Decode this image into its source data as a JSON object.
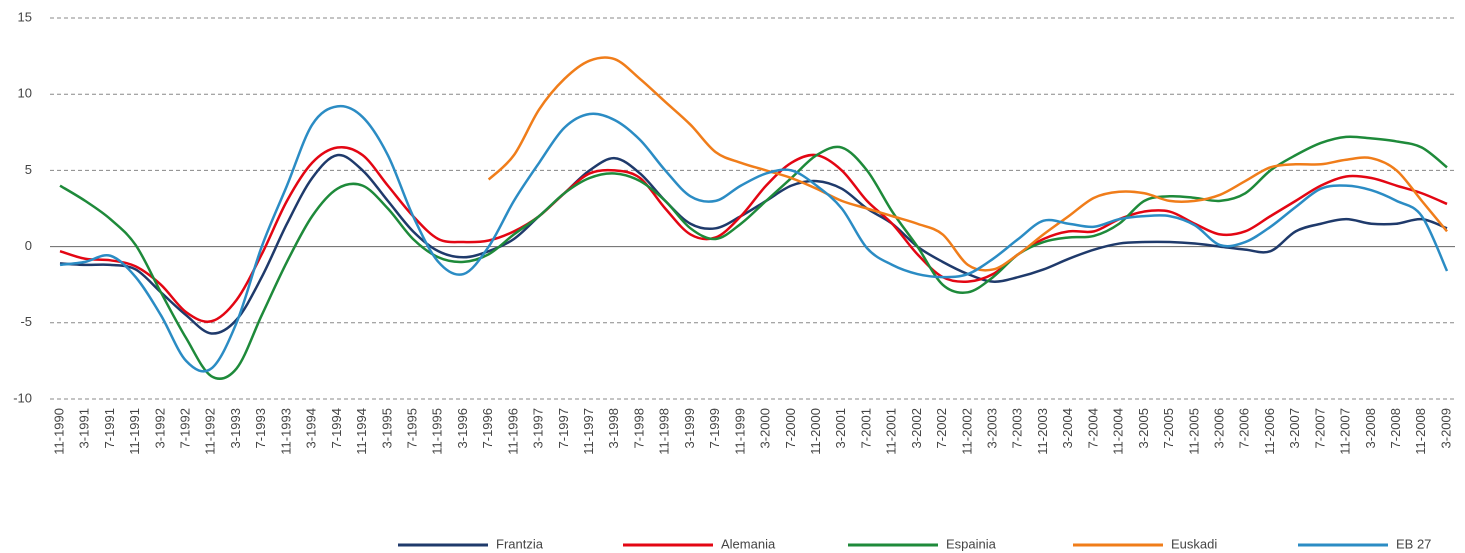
{
  "chart_data": {
    "type": "line",
    "categories": [
      "11-1990",
      "3-1991",
      "7-1991",
      "11-1991",
      "3-1992",
      "7-1992",
      "11-1992",
      "3-1993",
      "7-1993",
      "11-1993",
      "3-1994",
      "7-1994",
      "11-1994",
      "3-1995",
      "7-1995",
      "11-1995",
      "3-1996",
      "7-1996",
      "11-1996",
      "3-1997",
      "7-1997",
      "11-1997",
      "3-1998",
      "7-1998",
      "11-1998",
      "3-1999",
      "7-1999",
      "11-1999",
      "3-2000",
      "7-2000",
      "11-2000",
      "3-2001",
      "7-2001",
      "11-2001",
      "3-2002",
      "7-2002",
      "11-2002",
      "3-2003",
      "7-2003",
      "11-2003",
      "3-2004",
      "7-2004",
      "11-2004",
      "3-2005",
      "7-2005",
      "11-2005",
      "3-2006",
      "7-2006",
      "11-2006",
      "3-2007",
      "7-2007",
      "11-2007",
      "3-2008",
      "7-2008",
      "11-2008",
      "3-2009"
    ],
    "series": [
      {
        "name": "Frantzia",
        "color": "#1f3a6b",
        "values": [
          -1.1,
          -1.2,
          -1.2,
          -1.5,
          -3,
          -4.5,
          -5.7,
          -4.8,
          -2,
          1.5,
          4.5,
          6,
          5,
          3,
          1,
          -0.3,
          -0.7,
          -0.3,
          0.5,
          2,
          3.5,
          5,
          5.8,
          4.8,
          3,
          1.5,
          1.2,
          2,
          3,
          4,
          4.3,
          3.8,
          2.5,
          1.5,
          0,
          -1,
          -1.8,
          -2.3,
          -2,
          -1.5,
          -0.8,
          -0.2,
          0.2,
          0.3,
          0.3,
          0.2,
          0,
          -0.2,
          -0.3,
          1,
          1.5,
          1.8,
          1.5,
          1.5,
          1.8,
          1.2
        ]
      },
      {
        "name": "Alemania",
        "color": "#e30613",
        "values": [
          -0.3,
          -0.8,
          -0.9,
          -1.3,
          -2.5,
          -4.3,
          -4.9,
          -3.5,
          -0.5,
          3,
          5.5,
          6.5,
          6,
          4,
          2,
          0.5,
          0.3,
          0.4,
          1,
          2,
          3.5,
          4.8,
          5,
          4.5,
          2.5,
          0.8,
          0.6,
          2,
          4,
          5.5,
          6,
          5,
          3,
          1.5,
          -0.5,
          -2,
          -2.3,
          -1.8,
          -0.5,
          0.5,
          1,
          1,
          1.8,
          2.3,
          2.3,
          1.5,
          0.8,
          1,
          2,
          3,
          4,
          4.6,
          4.5,
          4,
          3.5,
          2.8
        ]
      },
      {
        "name": "Espainia",
        "color": "#1e8a3a",
        "values": [
          4,
          3,
          1.8,
          0.1,
          -3,
          -6,
          -8.5,
          -8,
          -4.5,
          -1,
          2,
          3.8,
          4,
          2.5,
          0.5,
          -0.7,
          -1,
          -0.5,
          0.8,
          2,
          3.5,
          4.5,
          4.8,
          4.3,
          3,
          1.2,
          0.5,
          1.5,
          3,
          4.5,
          6,
          6.5,
          5,
          2.3,
          0,
          -2.5,
          -3,
          -2,
          -0.5,
          0.3,
          0.6,
          0.7,
          1.5,
          3,
          3.3,
          3.2,
          3,
          3.5,
          5,
          6,
          6.8,
          7.2,
          7.1,
          6.9,
          6.5,
          5.2
        ]
      },
      {
        "name": "Euskadi",
        "color": "#f07d1a",
        "values": [
          null,
          null,
          null,
          null,
          null,
          null,
          null,
          null,
          null,
          null,
          null,
          null,
          null,
          null,
          null,
          null,
          null,
          4.4,
          6,
          9,
          11,
          12.2,
          12.3,
          11,
          9.5,
          8,
          6.2,
          5.5,
          5,
          4.5,
          3.8,
          3,
          2.5,
          2,
          1.5,
          0.8,
          -1.2,
          -1.5,
          -0.5,
          0.8,
          2,
          3.2,
          3.6,
          3.5,
          3,
          3,
          3.4,
          4.3,
          5.2,
          5.4,
          5.4,
          5.7,
          5.8,
          5,
          3,
          1
        ]
      },
      {
        "name": "EB 27",
        "color": "#2b8cc4",
        "values": [
          -1.2,
          -1,
          -0.6,
          -2,
          -4.5,
          -7.5,
          -8,
          -5,
          0,
          4,
          8,
          9.2,
          8.5,
          6,
          2,
          -1,
          -1.8,
          0,
          3,
          5.5,
          7.8,
          8.7,
          8.3,
          7,
          5,
          3.3,
          3,
          4,
          4.8,
          5,
          4,
          2.5,
          -0.1,
          -1.2,
          -1.8,
          -2,
          -1.8,
          -0.8,
          0.5,
          1.7,
          1.5,
          1.3,
          1.8,
          2,
          2,
          1.4,
          0.1,
          0.3,
          1.3,
          2.6,
          3.8,
          4,
          3.7,
          3,
          2,
          -1.6
        ]
      }
    ],
    "ylim": [
      -10,
      15
    ],
    "yticks": [
      -10,
      -5,
      0,
      5,
      10,
      15
    ],
    "grid": true,
    "legend": "bottom"
  }
}
